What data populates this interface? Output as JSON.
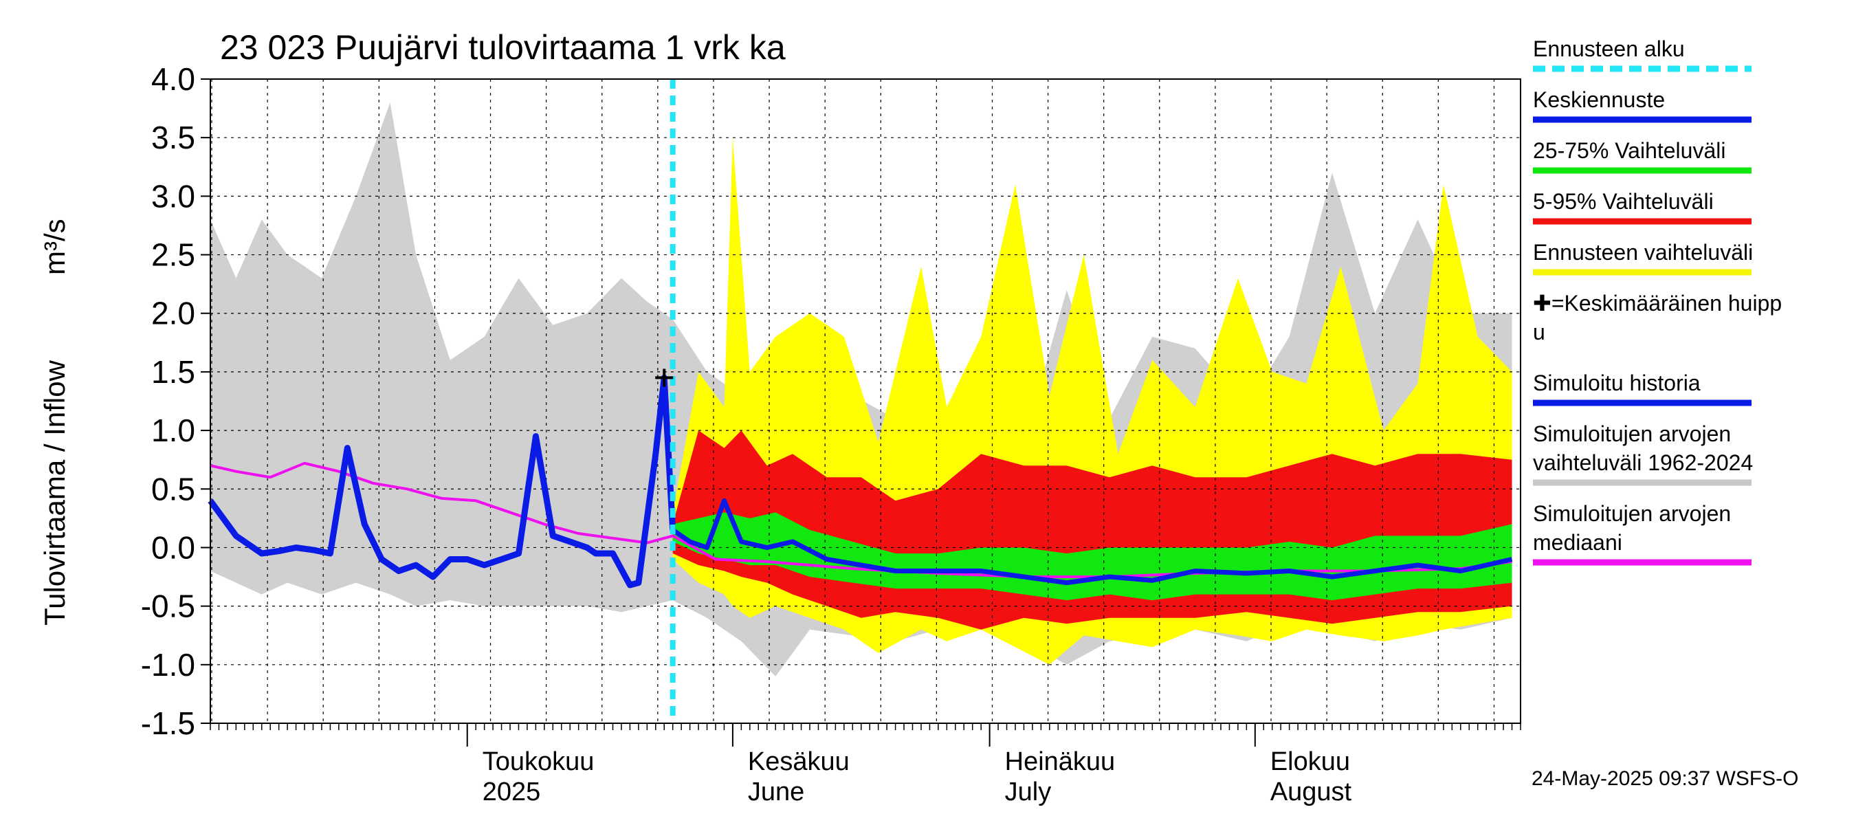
{
  "chart_data": {
    "type": "area",
    "title": "23 023 Puujärvi tulovirtaama 1 vrk ka",
    "ylabel": "Tulovirtaama / Inflow",
    "yunit": "m³/s",
    "ylim": [
      -1.5,
      4.0
    ],
    "yticks": [
      "4.0",
      "3.5",
      "3.0",
      "2.5",
      "2.0",
      "1.5",
      "1.0",
      "0.5",
      "0.0",
      "-0.5",
      "-1.0",
      "-1.5"
    ],
    "ytick_values": [
      4.0,
      3.5,
      3.0,
      2.5,
      2.0,
      1.5,
      1.0,
      0.5,
      0.0,
      -0.5,
      -1.0,
      -1.5
    ],
    "x_start": "2025-04-01",
    "x_end": "2025-08-31",
    "forecast_start": "2025-05-25",
    "grid": true,
    "month_labels": [
      {
        "date": "2025-05-01",
        "line1": "Toukokuu",
        "line2": "2025"
      },
      {
        "date": "2025-06-01",
        "line1": "Kesäkuu",
        "line2": "June"
      },
      {
        "date": "2025-07-01",
        "line1": "Heinäkuu",
        "line2": "July"
      },
      {
        "date": "2025-08-01",
        "line1": "Elokuu",
        "line2": "August"
      }
    ],
    "peak": {
      "date": "2025-05-24",
      "value": 1.45
    },
    "simulated_history": {
      "name": "Simuloitu historia",
      "x": [
        "2025-04-01",
        "2025-04-04",
        "2025-04-07",
        "2025-04-09",
        "2025-04-11",
        "2025-04-13",
        "2025-04-15",
        "2025-04-17",
        "2025-04-19",
        "2025-04-21",
        "2025-04-23",
        "2025-04-25",
        "2025-04-27",
        "2025-04-29",
        "2025-05-01",
        "2025-05-03",
        "2025-05-05",
        "2025-05-07",
        "2025-05-09",
        "2025-05-11",
        "2025-05-13",
        "2025-05-15",
        "2025-05-16",
        "2025-05-18",
        "2025-05-20",
        "2025-05-21",
        "2025-05-23",
        "2025-05-24",
        "2025-05-25"
      ],
      "y": [
        0.4,
        0.1,
        -0.05,
        -0.03,
        0.0,
        -0.02,
        -0.05,
        0.85,
        0.2,
        -0.1,
        -0.2,
        -0.15,
        -0.25,
        -0.1,
        -0.1,
        -0.15,
        -0.1,
        -0.05,
        0.95,
        0.1,
        0.05,
        0.0,
        -0.05,
        -0.05,
        -0.32,
        -0.3,
        0.8,
        1.45,
        0.15
      ]
    },
    "mean_forecast": {
      "name": "Keskiennuste",
      "x": [
        "2025-05-25",
        "2025-05-27",
        "2025-05-29",
        "2025-05-31",
        "2025-06-02",
        "2025-06-05",
        "2025-06-08",
        "2025-06-12",
        "2025-06-16",
        "2025-06-20",
        "2025-06-25",
        "2025-06-30",
        "2025-07-05",
        "2025-07-10",
        "2025-07-15",
        "2025-07-20",
        "2025-07-25",
        "2025-07-31",
        "2025-08-05",
        "2025-08-10",
        "2025-08-15",
        "2025-08-20",
        "2025-08-25",
        "2025-08-31"
      ],
      "y": [
        0.15,
        0.05,
        0.0,
        0.4,
        0.05,
        0.0,
        0.05,
        -0.1,
        -0.15,
        -0.2,
        -0.2,
        -0.2,
        -0.25,
        -0.3,
        -0.25,
        -0.28,
        -0.2,
        -0.22,
        -0.2,
        -0.25,
        -0.2,
        -0.15,
        -0.2,
        -0.1
      ]
    },
    "median": {
      "name": "Simuloitujen arvojen mediaani",
      "x": [
        "2025-04-01",
        "2025-04-04",
        "2025-04-08",
        "2025-04-12",
        "2025-04-16",
        "2025-04-20",
        "2025-04-24",
        "2025-04-28",
        "2025-05-02",
        "2025-05-06",
        "2025-05-10",
        "2025-05-14",
        "2025-05-18",
        "2025-05-22",
        "2025-05-25",
        "2025-05-30",
        "2025-06-05",
        "2025-06-15",
        "2025-06-25",
        "2025-07-05",
        "2025-07-15",
        "2025-07-25",
        "2025-08-05",
        "2025-08-15",
        "2025-08-25",
        "2025-08-31"
      ],
      "y": [
        0.7,
        0.65,
        0.6,
        0.72,
        0.65,
        0.55,
        0.5,
        0.42,
        0.4,
        0.3,
        0.2,
        0.12,
        0.08,
        0.04,
        0.1,
        -0.1,
        -0.12,
        -0.18,
        -0.22,
        -0.25,
        -0.25,
        -0.22,
        -0.2,
        -0.2,
        -0.18,
        -0.12
      ]
    },
    "hist_range": {
      "name": "Simuloitujen arvojen vaihteluväli 1962-2024",
      "x": [
        "2025-04-01",
        "2025-04-04",
        "2025-04-07",
        "2025-04-10",
        "2025-04-14",
        "2025-04-18",
        "2025-04-22",
        "2025-04-25",
        "2025-04-29",
        "2025-05-03",
        "2025-05-07",
        "2025-05-11",
        "2025-05-15",
        "2025-05-19",
        "2025-05-22",
        "2025-05-25",
        "2025-05-29",
        "2025-06-02",
        "2025-06-06",
        "2025-06-10",
        "2025-06-15",
        "2025-06-20",
        "2025-06-25",
        "2025-06-30",
        "2025-07-05",
        "2025-07-10",
        "2025-07-15",
        "2025-07-20",
        "2025-07-25",
        "2025-07-31",
        "2025-08-05",
        "2025-08-10",
        "2025-08-15",
        "2025-08-20",
        "2025-08-25",
        "2025-08-31"
      ],
      "upper": [
        2.8,
        2.3,
        2.8,
        2.5,
        2.3,
        3.0,
        3.8,
        2.5,
        1.6,
        1.8,
        2.3,
        1.9,
        2.0,
        2.3,
        2.1,
        1.95,
        1.5,
        1.3,
        1.2,
        1.5,
        1.3,
        1.1,
        1.0,
        1.4,
        0.9,
        2.2,
        1.1,
        1.8,
        1.7,
        1.2,
        1.8,
        3.2,
        2.0,
        2.8,
        2.0,
        2.0
      ],
      "lower": [
        -0.2,
        -0.3,
        -0.4,
        -0.3,
        -0.4,
        -0.3,
        -0.4,
        -0.5,
        -0.45,
        -0.5,
        -0.5,
        -0.5,
        -0.5,
        -0.55,
        -0.5,
        -0.45,
        -0.6,
        -0.8,
        -1.1,
        -0.7,
        -0.75,
        -0.8,
        -0.7,
        -0.65,
        -0.8,
        -1.0,
        -0.8,
        -0.75,
        -0.7,
        -0.8,
        -0.65,
        -0.7,
        -0.8,
        -0.65,
        -0.7,
        -0.6
      ]
    },
    "forecast_range": {
      "name": "Ennusteen vaihteluväli",
      "x": [
        "2025-05-25",
        "2025-05-28",
        "2025-05-31",
        "2025-06-01",
        "2025-06-03",
        "2025-06-06",
        "2025-06-10",
        "2025-06-14",
        "2025-06-18",
        "2025-06-23",
        "2025-06-26",
        "2025-06-30",
        "2025-07-04",
        "2025-07-08",
        "2025-07-12",
        "2025-07-16",
        "2025-07-20",
        "2025-07-25",
        "2025-07-30",
        "2025-08-03",
        "2025-08-07",
        "2025-08-11",
        "2025-08-16",
        "2025-08-20",
        "2025-08-23",
        "2025-08-27",
        "2025-08-31"
      ],
      "upper": [
        0.3,
        1.5,
        1.2,
        3.5,
        1.5,
        1.8,
        2.0,
        1.8,
        0.9,
        2.4,
        1.2,
        1.8,
        3.1,
        1.3,
        2.5,
        0.8,
        1.6,
        1.2,
        2.3,
        1.5,
        1.4,
        2.4,
        1.0,
        1.4,
        3.1,
        1.8,
        1.5
      ],
      "lower": [
        -0.1,
        -0.3,
        -0.4,
        -0.5,
        -0.6,
        -0.5,
        -0.6,
        -0.7,
        -0.9,
        -0.7,
        -0.8,
        -0.7,
        -0.85,
        -1.0,
        -0.75,
        -0.8,
        -0.85,
        -0.7,
        -0.75,
        -0.8,
        -0.7,
        -0.75,
        -0.8,
        -0.75,
        -0.7,
        -0.65,
        -0.6
      ]
    },
    "range_5_95": {
      "name": "5-95% Vaihteluväli",
      "x": [
        "2025-05-25",
        "2025-05-28",
        "2025-05-31",
        "2025-06-02",
        "2025-06-05",
        "2025-06-08",
        "2025-06-12",
        "2025-06-16",
        "2025-06-20",
        "2025-06-25",
        "2025-06-30",
        "2025-07-05",
        "2025-07-10",
        "2025-07-15",
        "2025-07-20",
        "2025-07-25",
        "2025-07-31",
        "2025-08-05",
        "2025-08-10",
        "2025-08-15",
        "2025-08-20",
        "2025-08-25",
        "2025-08-31"
      ],
      "upper": [
        0.2,
        1.0,
        0.85,
        1.0,
        0.7,
        0.8,
        0.6,
        0.6,
        0.4,
        0.5,
        0.8,
        0.7,
        0.7,
        0.6,
        0.7,
        0.6,
        0.6,
        0.7,
        0.8,
        0.7,
        0.8,
        0.8,
        0.75
      ],
      "lower": [
        -0.05,
        -0.15,
        -0.2,
        -0.25,
        -0.3,
        -0.4,
        -0.5,
        -0.6,
        -0.55,
        -0.6,
        -0.7,
        -0.6,
        -0.65,
        -0.6,
        -0.6,
        -0.6,
        -0.55,
        -0.6,
        -0.65,
        -0.6,
        -0.55,
        -0.55,
        -0.5
      ]
    },
    "range_25_75": {
      "name": "25-75% Vaihteluväli",
      "x": [
        "2025-05-25",
        "2025-05-28",
        "2025-05-31",
        "2025-06-03",
        "2025-06-06",
        "2025-06-10",
        "2025-06-15",
        "2025-06-20",
        "2025-06-25",
        "2025-06-30",
        "2025-07-05",
        "2025-07-10",
        "2025-07-15",
        "2025-07-20",
        "2025-07-25",
        "2025-07-31",
        "2025-08-05",
        "2025-08-10",
        "2025-08-15",
        "2025-08-20",
        "2025-08-25",
        "2025-08-31"
      ],
      "upper": [
        0.2,
        0.25,
        0.3,
        0.25,
        0.3,
        0.15,
        0.05,
        -0.05,
        -0.05,
        0.0,
        0.0,
        -0.05,
        0.0,
        0.0,
        0.0,
        0.0,
        0.05,
        0.0,
        0.1,
        0.1,
        0.1,
        0.2
      ],
      "lower": [
        0.05,
        -0.05,
        -0.1,
        -0.15,
        -0.15,
        -0.25,
        -0.3,
        -0.35,
        -0.35,
        -0.35,
        -0.4,
        -0.45,
        -0.4,
        -0.45,
        -0.4,
        -0.4,
        -0.4,
        -0.45,
        -0.4,
        -0.35,
        -0.35,
        -0.3
      ]
    },
    "legend": [
      {
        "label": "Ennusteen alku",
        "color": "#22e5f5",
        "style": "dashed"
      },
      {
        "label": "Keskiennuste",
        "color": "#0a1be6",
        "style": "solid"
      },
      {
        "label": "25-75% Vaihteluväli",
        "color": "#11e611",
        "style": "solid"
      },
      {
        "label": "5-95% Vaihteluväli",
        "color": "#f01010",
        "style": "solid"
      },
      {
        "label": "Ennusteen vaihteluväli",
        "color": "#f5f50a",
        "style": "solid"
      },
      {
        "label": "✚=Keskimääräinen huipp\nu",
        "color": "#000000",
        "style": "none"
      },
      {
        "label": "Simuloitu historia",
        "color": "#0a1be6",
        "style": "solid"
      },
      {
        "label": "Simuloitujen arvojen\nvaihteluväli 1962-2024",
        "color": "#c8c8c8",
        "style": "solid"
      },
      {
        "label": "Simuloitujen arvojen\nmediaani",
        "color": "#f010f0",
        "style": "solid"
      }
    ],
    "legend_position": "right"
  },
  "timestamp": "24-May-2025 09:37 WSFS-O",
  "colors": {
    "hist_range": "#d0d0d0",
    "hist_edge": "#c0c0c0",
    "forecast_range": "#ffff00",
    "range_5_95": "#f21010",
    "range_25_75": "#10e810",
    "mean": "#0a1be6",
    "history": "#0a1be6",
    "median": "#ee10ee",
    "forecast_start": "#22e5f5",
    "grid": "#000000"
  }
}
